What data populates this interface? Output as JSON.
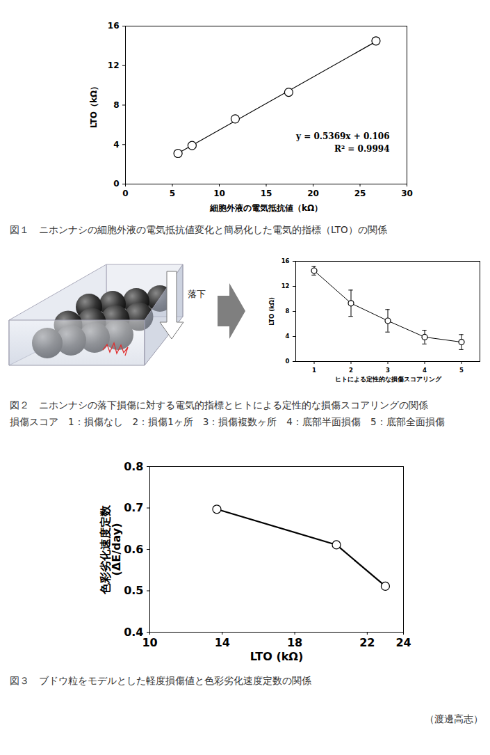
{
  "chart_data": [
    {
      "type": "scatter",
      "title": "図１　ニホンナシの細胞外液の電気抵抗値変化と簡易化した電気的指標（LTO）の関係",
      "xlabel": "細胞外液の電気抵抗値（kΩ）",
      "ylabel": "LTO（kΩ）",
      "x": [
        5.6,
        7.1,
        11.7,
        17.4,
        26.7
      ],
      "values": [
        3.1,
        3.9,
        6.6,
        9.3,
        14.5
      ],
      "trendline": {
        "slope": 0.5369,
        "intercept": 0.106
      },
      "annotations": [
        "y = 0.5369x + 0.106",
        "R² = 0.9994"
      ],
      "xlim": [
        0,
        30
      ],
      "xticks": [
        0,
        5,
        10,
        15,
        20,
        25,
        30
      ],
      "ylim": [
        0,
        16
      ],
      "yticks": [
        0,
        4,
        8,
        12,
        16
      ],
      "marker": "circle",
      "color": "#000000"
    },
    {
      "type": "line",
      "title": "図２　ニホンナシの落下損傷に対する電気的指標とヒトによる定性的な損傷スコアリングの関係",
      "subtitle": "損傷スコア　1：損傷なし　2：損傷1ヶ所　3：損傷複数ヶ所　4：底部半面損傷　5：底部全面損傷",
      "annotations": [
        "落下"
      ],
      "xlabel": "ヒトによる定性的な損傷スコアリング",
      "ylabel": "LTO (kΩ)",
      "x": [
        1,
        2,
        3,
        4,
        5
      ],
      "values": [
        14.5,
        9.3,
        6.5,
        3.9,
        3.1
      ],
      "errors": [
        0.7,
        2.1,
        1.8,
        1.1,
        1.2
      ],
      "xlim": [
        0.5,
        5.5
      ],
      "xticks": [
        1,
        2,
        3,
        4,
        5
      ],
      "ylim": [
        0,
        16
      ],
      "yticks": [
        0,
        4,
        8,
        12,
        16
      ],
      "marker": "circle",
      "color": "#000000"
    },
    {
      "type": "line",
      "title": "図３　ブドウ粒をモデルとした軽度損傷値と色彩劣化速度定数の関係",
      "xlabel": "LTO (kΩ)",
      "ylabel": "色彩劣化速度定数\n(ΔE/day)",
      "x": [
        13.7,
        20.3,
        23.0
      ],
      "values": [
        0.697,
        0.611,
        0.511
      ],
      "xlim": [
        10,
        24
      ],
      "xticks": [
        10,
        14,
        18,
        22,
        24
      ],
      "ylim": [
        0.4,
        0.8
      ],
      "yticks": [
        0.4,
        0.5,
        0.6,
        0.7,
        0.8
      ],
      "marker": "circle",
      "color": "#000000"
    }
  ],
  "footer": "（渡邊高志）"
}
